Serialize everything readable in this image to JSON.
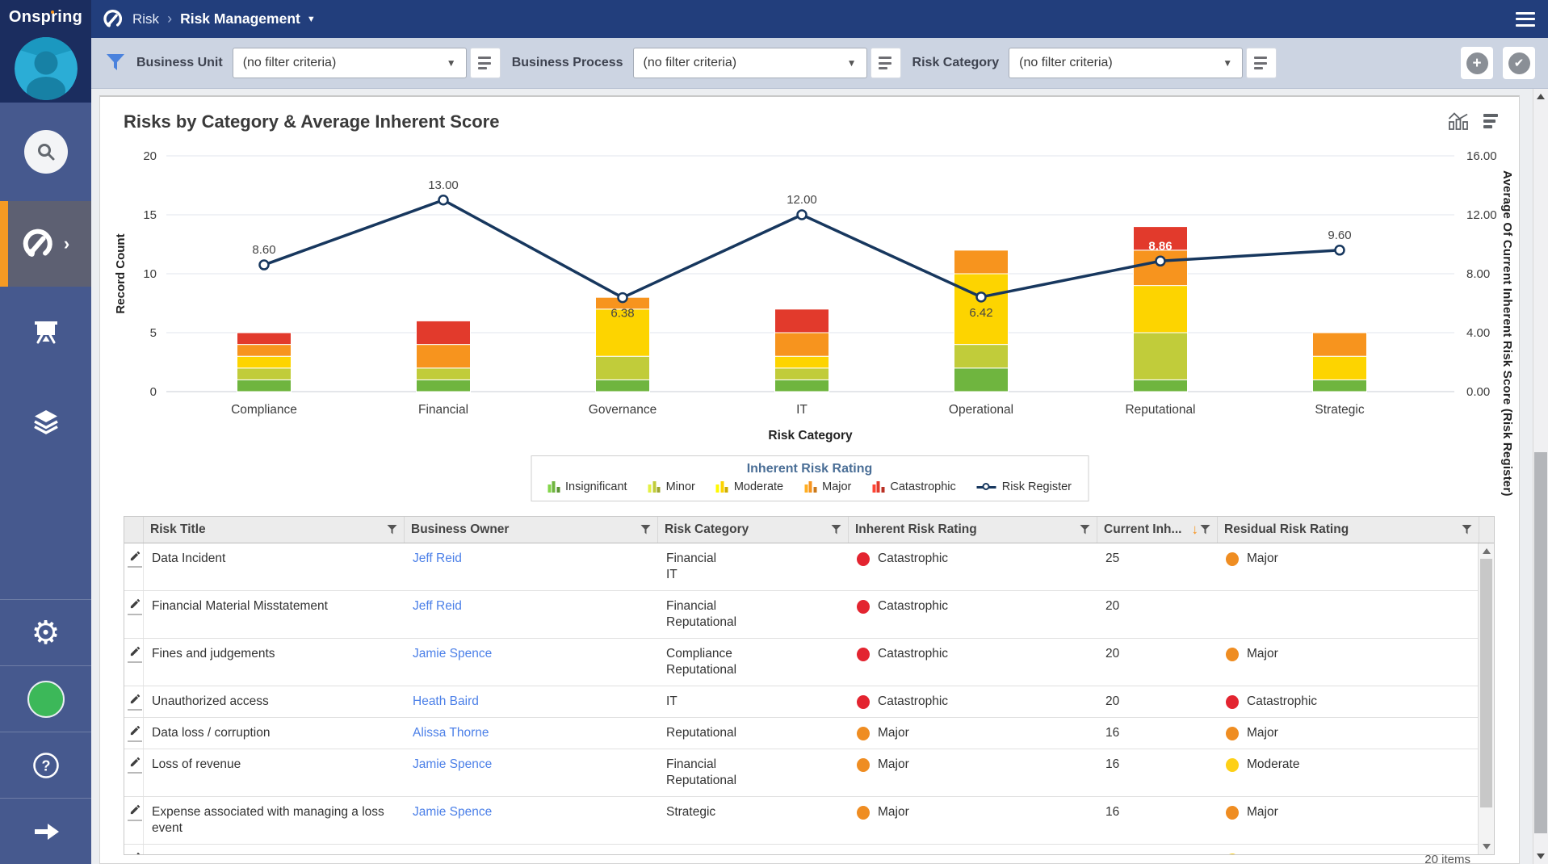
{
  "app": {
    "logo_text": "Onspring"
  },
  "header": {
    "breadcrumb": {
      "app": "Risk",
      "page": "Risk Management"
    }
  },
  "filter_bar": {
    "groups": [
      {
        "label": "Business Unit",
        "value": "(no filter criteria)"
      },
      {
        "label": "Business Process",
        "value": "(no filter criteria)"
      },
      {
        "label": "Risk Category",
        "value": "(no filter criteria)"
      }
    ]
  },
  "card": {
    "title": "Risks by Category & Average Inherent Score"
  },
  "chart_data": {
    "type": "combo-stacked-bar-line",
    "title": "Risks by Category & Average Inherent Score",
    "categories": [
      "Compliance",
      "Financial",
      "Governance",
      "IT",
      "Operational",
      "Reputational",
      "Strategic"
    ],
    "series": [
      {
        "name": "Insignificant",
        "color": "#6fb53f",
        "values": [
          1,
          1,
          1,
          1,
          2,
          1,
          1
        ]
      },
      {
        "name": "Minor",
        "color": "#c1cc3a",
        "values": [
          1,
          1,
          2,
          1,
          2,
          4,
          0
        ]
      },
      {
        "name": "Moderate",
        "color": "#fdd400",
        "values": [
          1,
          0,
          4,
          1,
          6,
          4,
          2
        ]
      },
      {
        "name": "Major",
        "color": "#f7941e",
        "values": [
          1,
          2,
          1,
          2,
          2,
          3,
          2
        ]
      },
      {
        "name": "Catastrophic",
        "color": "#e23a2c",
        "values": [
          1,
          2,
          0,
          2,
          0,
          2,
          0
        ]
      }
    ],
    "line_series": {
      "name": "Risk Register",
      "color": "#17375e",
      "values": [
        8.6,
        13.0,
        6.38,
        12.0,
        6.42,
        8.86,
        9.6
      ],
      "labels": [
        "8.60",
        "13.00",
        "6.38",
        "12.00",
        "6.42",
        "8.86",
        "9.60"
      ],
      "label_positions": [
        "above",
        "above",
        "below",
        "above",
        "below",
        "inside",
        "above"
      ]
    },
    "xlabel": "Risk Category",
    "ylabel_left": "Record Count",
    "ylabel_right": "Average Of Current Inherent Risk Score (Risk Register)",
    "yticks_left": [
      20,
      15,
      10,
      5,
      0
    ],
    "yticks_right": [
      "16.00",
      "12.00",
      "8.00",
      "4.00",
      "0.00"
    ],
    "ylim_left": [
      0,
      20
    ],
    "ylim_right": [
      0,
      16
    ],
    "grid": true,
    "legend_title": "Inherent Risk Rating",
    "legend_position": "bottom"
  },
  "table": {
    "columns": [
      {
        "label": "",
        "filter": false
      },
      {
        "label": "Risk Title",
        "filter": true
      },
      {
        "label": "Business Owner",
        "filter": true
      },
      {
        "label": "Risk Category",
        "filter": true
      },
      {
        "label": "Inherent Risk Rating",
        "filter": true
      },
      {
        "label": "Current Inh...",
        "filter": true,
        "sort": "desc"
      },
      {
        "label": "Residual Risk Rating",
        "filter": true
      }
    ],
    "rating_colors": {
      "red": "#e32430",
      "orange": "#ef8d22",
      "yellow": "#fdd017"
    },
    "rows": [
      {
        "title": "Data Incident",
        "owner": "Jeff Reid",
        "categories": [
          "Financial",
          "IT"
        ],
        "inherent": {
          "label": "Catastrophic",
          "color": "red"
        },
        "score": "25",
        "residual": {
          "label": "Major",
          "color": "orange"
        }
      },
      {
        "title": "Financial Material Misstatement",
        "owner": "Jeff Reid",
        "categories": [
          "Financial",
          "Reputational"
        ],
        "inherent": {
          "label": "Catastrophic",
          "color": "red"
        },
        "score": "20",
        "residual": null
      },
      {
        "title": "Fines and judgements",
        "owner": "Jamie Spence",
        "categories": [
          "Compliance",
          "Reputational"
        ],
        "inherent": {
          "label": "Catastrophic",
          "color": "red"
        },
        "score": "20",
        "residual": {
          "label": "Major",
          "color": "orange"
        }
      },
      {
        "title": "Unauthorized access",
        "owner": "Heath Baird",
        "categories": [
          "IT"
        ],
        "inherent": {
          "label": "Catastrophic",
          "color": "red"
        },
        "score": "20",
        "residual": {
          "label": "Catastrophic",
          "color": "red"
        }
      },
      {
        "title": "Data loss / corruption",
        "owner": "Alissa Thorne",
        "categories": [
          "Reputational"
        ],
        "inherent": {
          "label": "Major",
          "color": "orange"
        },
        "score": "16",
        "residual": {
          "label": "Major",
          "color": "orange"
        }
      },
      {
        "title": "Loss of revenue",
        "owner": "Jamie Spence",
        "categories": [
          "Financial",
          "Reputational"
        ],
        "inherent": {
          "label": "Major",
          "color": "orange"
        },
        "score": "16",
        "residual": {
          "label": "Moderate",
          "color": "yellow"
        }
      },
      {
        "title": "Expense associated with managing a loss event",
        "owner": "Jamie Spence",
        "categories": [
          "Strategic"
        ],
        "inherent": {
          "label": "Major",
          "color": "orange"
        },
        "score": "16",
        "residual": {
          "label": "Major",
          "color": "orange"
        }
      },
      {
        "title": "",
        "owner": "",
        "categories": [],
        "inherent": null,
        "score": "",
        "residual": {
          "label": "",
          "color": "yellow"
        },
        "partial": true
      }
    ],
    "footer": "20 items"
  }
}
